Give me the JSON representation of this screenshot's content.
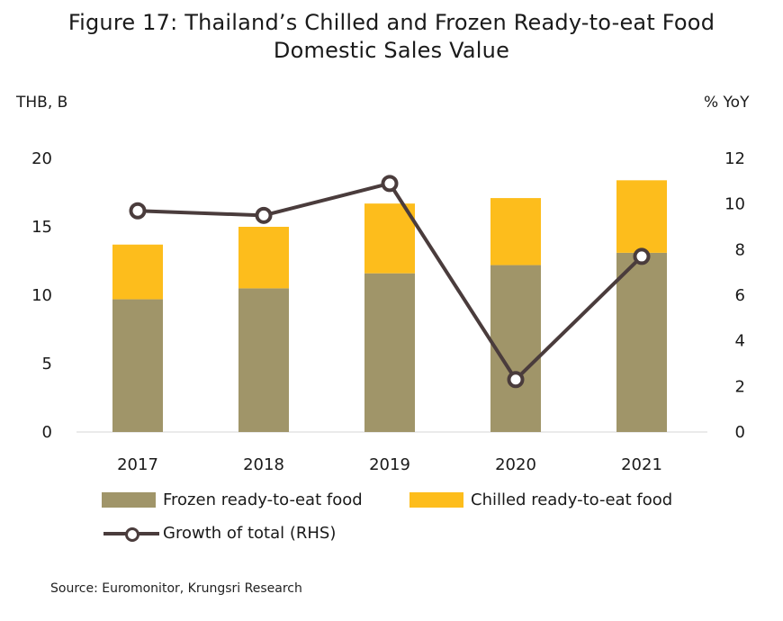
{
  "title_line1": "Figure 17: Thailand’s Chilled and Frozen Ready-to-eat Food",
  "title_line2": "Domestic Sales Value",
  "left_axis_unit": "THB, B",
  "right_axis_unit": "% YoY",
  "source": "Source: Euromonitor, Krungsri Research",
  "colors": {
    "frozen": "#a09569",
    "chilled": "#fdbd1c",
    "growth": "#4a3c3c"
  },
  "chart_data": {
    "type": "bar",
    "stacked": true,
    "categories": [
      "2017",
      "2018",
      "2019",
      "2020",
      "2021"
    ],
    "series": [
      {
        "name": "Frozen ready-to-eat food",
        "values": [
          9.7,
          10.5,
          11.6,
          12.2,
          13.1
        ]
      },
      {
        "name": "Chilled ready-to-eat food",
        "values": [
          4.0,
          4.5,
          5.1,
          4.9,
          5.3
        ]
      }
    ],
    "line_series": {
      "name": "Growth of total (RHS)",
      "axis": "right",
      "values": [
        9.7,
        9.5,
        10.9,
        2.3,
        7.7
      ]
    },
    "ylim": [
      0,
      20
    ],
    "yticks": [
      0,
      5,
      10,
      15,
      20
    ],
    "y2lim": [
      0,
      12
    ],
    "y2ticks": [
      0,
      2,
      4,
      6,
      8,
      10,
      12
    ],
    "legend_position": "bottom",
    "grid": false
  }
}
